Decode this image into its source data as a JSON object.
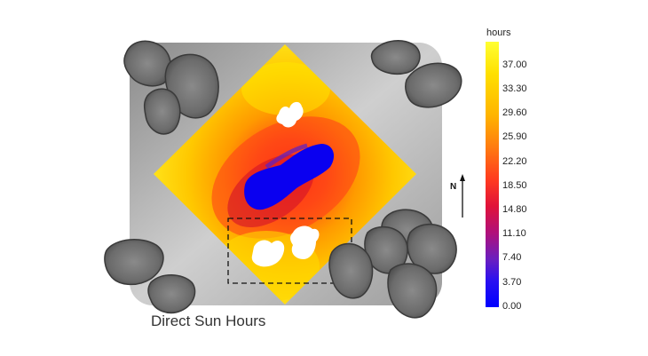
{
  "caption": "Direct Sun Hours",
  "north_label": "N",
  "legend": {
    "unit": "hours",
    "ticks": [
      "37.00",
      "33.30",
      "29.60",
      "25.90",
      "22.20",
      "18.50",
      "14.80",
      "11.10",
      "7.40",
      "3.70",
      "0.00"
    ],
    "colors": {
      "max": "#ffff33",
      "high": "#ffd000",
      "mid_high": "#ff9a00",
      "mid": "#ff5a1a",
      "mid_low": "#e0123a",
      "low": "#7a1fb4",
      "min": "#0000ff"
    }
  }
}
